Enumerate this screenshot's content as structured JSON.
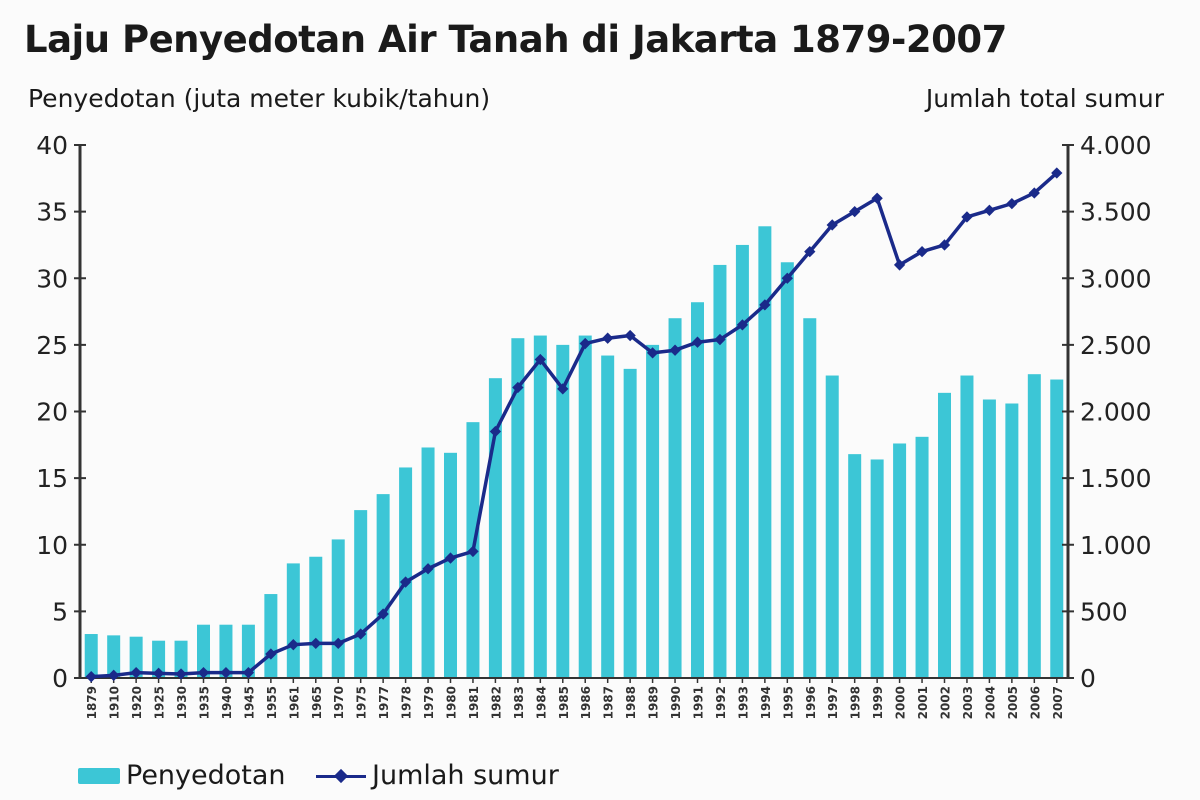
{
  "title": "Laju Penyedotan Air Tanah di Jakarta 1879-2007",
  "left_axis_label": "Penyedotan (juta meter kubik/tahun)",
  "right_axis_label": "Jumlah total sumur",
  "legend": {
    "bar": "Penyedotan",
    "line": "Jumlah sumur"
  },
  "colors": {
    "bar": "#3cc6d6",
    "line": "#1a2a8a",
    "axis": "#333333"
  },
  "left_ticks": [
    "0",
    "5",
    "10",
    "15",
    "20",
    "25",
    "30",
    "35",
    "40"
  ],
  "right_ticks": [
    "0",
    "500",
    "1.000",
    "1.500",
    "2.000",
    "2.500",
    "3.000",
    "3.500",
    "4.000"
  ],
  "chart_data": {
    "type": "bar+line",
    "title": "Laju Penyedotan Air Tanah di Jakarta 1879-2007",
    "xlabel": "",
    "ylabel": "Penyedotan (juta meter kubik/tahun)",
    "y2label": "Jumlah total sumur",
    "ylim": [
      0,
      40
    ],
    "y2lim": [
      0,
      4000
    ],
    "legend_position": "bottom",
    "grid": false,
    "categories": [
      "1879",
      "1910",
      "1920",
      "1925",
      "1930",
      "1935",
      "1940",
      "1945",
      "1955",
      "1961",
      "1965",
      "1970",
      "1975",
      "1977",
      "1978",
      "1979",
      "1980",
      "1981",
      "1982",
      "1983",
      "1984",
      "1985",
      "1986",
      "1987",
      "1988",
      "1989",
      "1990",
      "1991",
      "1992",
      "1993",
      "1994",
      "1995",
      "1996",
      "1997",
      "1998",
      "1999",
      "2000",
      "2001",
      "2002",
      "2003",
      "2004",
      "2005",
      "2006",
      "2007"
    ],
    "series": [
      {
        "name": "Penyedotan",
        "type": "bar",
        "axis": "left",
        "values": [
          3.3,
          3.2,
          3.1,
          2.8,
          2.8,
          4.0,
          4.0,
          4.0,
          6.3,
          8.6,
          9.1,
          10.4,
          12.6,
          13.8,
          15.8,
          17.3,
          16.9,
          19.2,
          22.5,
          25.5,
          25.7,
          25.0,
          25.7,
          24.2,
          23.2,
          25.0,
          27.0,
          28.2,
          31.0,
          32.5,
          33.9,
          31.2,
          27.0,
          22.7,
          16.8,
          16.4,
          17.6,
          18.1,
          21.4,
          22.7,
          20.9,
          20.6,
          22.8,
          22.4
        ]
      },
      {
        "name": "Jumlah sumur",
        "type": "line",
        "axis": "right",
        "values": [
          10,
          20,
          40,
          35,
          30,
          40,
          40,
          40,
          180,
          250,
          260,
          260,
          330,
          480,
          720,
          820,
          900,
          950,
          1850,
          2180,
          2390,
          2170,
          2510,
          2550,
          2570,
          2440,
          2460,
          2520,
          2540,
          2650,
          2800,
          3000,
          3200,
          3400,
          3500,
          3600,
          3100,
          3200,
          3250,
          3460,
          3510,
          3560,
          3640,
          3790
        ]
      }
    ]
  }
}
